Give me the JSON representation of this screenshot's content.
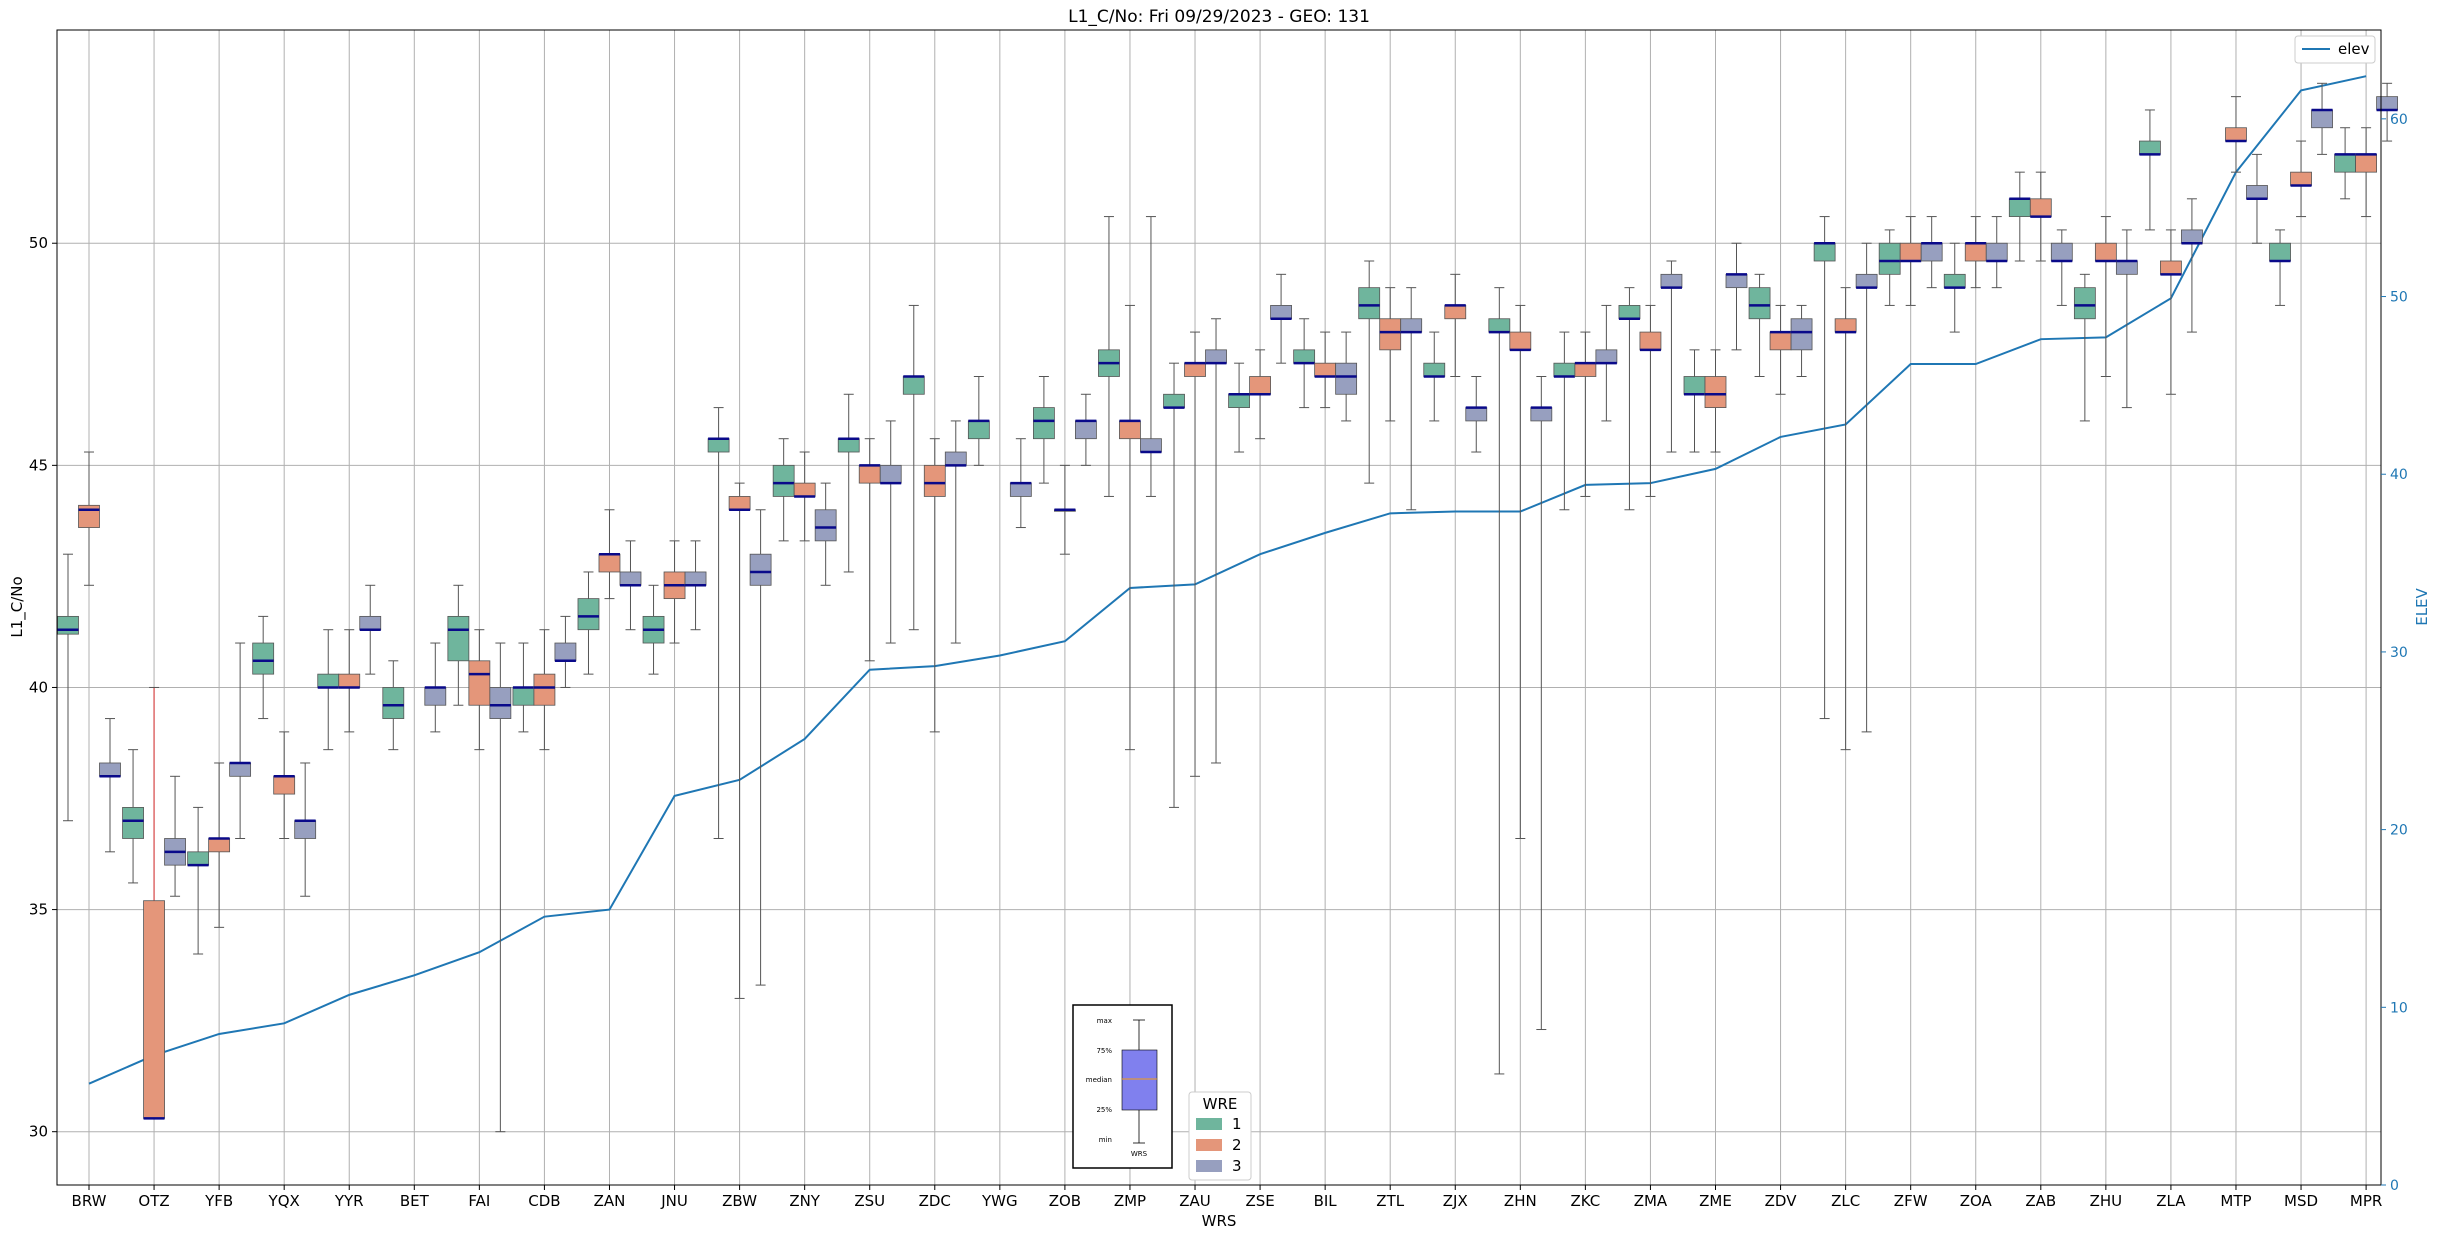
{
  "chart_data": {
    "type": "box",
    "title": "L1_C/No: Fri 09/29/2023 - GEO: 131",
    "xlabel": "WRS",
    "ylabel": "L1_C/No",
    "ylabel_right": "ELEV",
    "ylim": [
      28.8,
      54.8
    ],
    "ylim_right": [
      0,
      65
    ],
    "yticks": [
      30,
      35,
      40,
      45,
      50
    ],
    "yticks_right": [
      0,
      10,
      20,
      30,
      40,
      50,
      60
    ],
    "grid": true,
    "categories": [
      "BRW",
      "OTZ",
      "YFB",
      "YQX",
      "YYR",
      "BET",
      "FAI",
      "CDB",
      "ZAN",
      "JNU",
      "ZBW",
      "ZNY",
      "ZSU",
      "ZDC",
      "YWG",
      "ZOB",
      "ZMP",
      "ZAU",
      "ZSE",
      "BIL",
      "ZTL",
      "ZJX",
      "ZHN",
      "ZKC",
      "ZMA",
      "ZME",
      "ZDV",
      "ZLC",
      "ZFW",
      "ZOA",
      "ZAB",
      "ZHU",
      "ZLA",
      "MTP",
      "MSD",
      "MPR"
    ],
    "box_legend_title": "WRE",
    "box_series": [
      {
        "name": "1",
        "color": "#6fb59d"
      },
      {
        "name": "2",
        "color": "#e4967a"
      },
      {
        "name": "3",
        "color": "#979fbf"
      }
    ],
    "line_series": {
      "name": "elev",
      "color": "#1f77b4",
      "values": [
        5.7,
        7.3,
        8.5,
        9.1,
        10.7,
        11.8,
        13.1,
        15.1,
        15.5,
        21.9,
        22.8,
        25.1,
        29.0,
        29.2,
        29.8,
        30.6,
        33.6,
        33.8,
        35.5,
        36.7,
        37.8,
        37.9,
        37.9,
        39.4,
        39.5,
        40.3,
        42.1,
        42.8,
        46.2,
        46.2,
        47.6,
        47.7,
        49.9,
        57.0,
        61.6,
        62.4
      ]
    },
    "boxes": [
      {
        "cat": "BRW",
        "s": 1,
        "q1": 41.2,
        "med": 41.3,
        "q3": 41.6,
        "min": 37.0,
        "max": 43.0
      },
      {
        "cat": "BRW",
        "s": 2,
        "q1": 43.6,
        "med": 44.0,
        "q3": 44.1,
        "min": 42.3,
        "max": 45.3
      },
      {
        "cat": "BRW",
        "s": 3,
        "q1": 38.0,
        "med": 38.0,
        "q3": 38.3,
        "min": 36.3,
        "max": 39.3
      },
      {
        "cat": "OTZ",
        "s": 1,
        "q1": 36.6,
        "med": 37.0,
        "q3": 37.3,
        "min": 35.6,
        "max": 38.6
      },
      {
        "cat": "OTZ",
        "s": 2,
        "q1": 30.3,
        "med": 30.3,
        "q3": 35.2,
        "min": 30.3,
        "max": 40.0,
        "whisker_color": "#d62728"
      },
      {
        "cat": "OTZ",
        "s": 3,
        "q1": 36.0,
        "med": 36.3,
        "q3": 36.6,
        "min": 35.3,
        "max": 38.0
      },
      {
        "cat": "YFB",
        "s": 1,
        "q1": 36.0,
        "med": 36.0,
        "q3": 36.3,
        "min": 34.0,
        "max": 37.3
      },
      {
        "cat": "YFB",
        "s": 2,
        "q1": 36.3,
        "med": 36.6,
        "q3": 36.6,
        "min": 34.6,
        "max": 38.3
      },
      {
        "cat": "YFB",
        "s": 3,
        "q1": 38.0,
        "med": 38.3,
        "q3": 38.3,
        "min": 36.6,
        "max": 41.0
      },
      {
        "cat": "YQX",
        "s": 1,
        "q1": 40.3,
        "med": 40.6,
        "q3": 41.0,
        "min": 39.3,
        "max": 41.6
      },
      {
        "cat": "YQX",
        "s": 2,
        "q1": 37.6,
        "med": 38.0,
        "q3": 38.0,
        "min": 36.6,
        "max": 39.0
      },
      {
        "cat": "YQX",
        "s": 3,
        "q1": 36.6,
        "med": 37.0,
        "q3": 37.0,
        "min": 35.3,
        "max": 38.3
      },
      {
        "cat": "YYR",
        "s": 1,
        "q1": 40.0,
        "med": 40.0,
        "q3": 40.3,
        "min": 38.6,
        "max": 41.3
      },
      {
        "cat": "YYR",
        "s": 2,
        "q1": 40.0,
        "med": 40.0,
        "q3": 40.3,
        "min": 39.0,
        "max": 41.3
      },
      {
        "cat": "YYR",
        "s": 3,
        "q1": 41.3,
        "med": 41.3,
        "q3": 41.6,
        "min": 40.3,
        "max": 42.3
      },
      {
        "cat": "BET",
        "s": 1,
        "q1": 39.3,
        "med": 39.6,
        "q3": 40.0,
        "min": 38.6,
        "max": 40.6
      },
      {
        "cat": "BET",
        "s": 3,
        "q1": 39.6,
        "med": 40.0,
        "q3": 40.0,
        "min": 39.0,
        "max": 41.0
      },
      {
        "cat": "FAI",
        "s": 1,
        "q1": 40.6,
        "med": 41.3,
        "q3": 41.6,
        "min": 39.6,
        "max": 42.3
      },
      {
        "cat": "FAI",
        "s": 2,
        "q1": 39.6,
        "med": 40.3,
        "q3": 40.6,
        "min": 38.6,
        "max": 41.3
      },
      {
        "cat": "FAI",
        "s": 3,
        "q1": 39.3,
        "med": 39.6,
        "q3": 40.0,
        "min": 30.0,
        "max": 41.0
      },
      {
        "cat": "CDB",
        "s": 1,
        "q1": 39.6,
        "med": 40.0,
        "q3": 40.0,
        "min": 39.0,
        "max": 41.0
      },
      {
        "cat": "CDB",
        "s": 2,
        "q1": 39.6,
        "med": 40.0,
        "q3": 40.3,
        "min": 38.6,
        "max": 41.3
      },
      {
        "cat": "CDB",
        "s": 3,
        "q1": 40.6,
        "med": 40.6,
        "q3": 41.0,
        "min": 40.0,
        "max": 41.6
      },
      {
        "cat": "ZAN",
        "s": 1,
        "q1": 41.3,
        "med": 41.6,
        "q3": 42.0,
        "min": 40.3,
        "max": 42.6
      },
      {
        "cat": "ZAN",
        "s": 2,
        "q1": 42.6,
        "med": 43.0,
        "q3": 43.0,
        "min": 42.0,
        "max": 44.0
      },
      {
        "cat": "ZAN",
        "s": 3,
        "q1": 42.3,
        "med": 42.3,
        "q3": 42.6,
        "min": 41.3,
        "max": 43.3
      },
      {
        "cat": "JNU",
        "s": 1,
        "q1": 41.0,
        "med": 41.3,
        "q3": 41.6,
        "min": 40.3,
        "max": 42.3
      },
      {
        "cat": "JNU",
        "s": 2,
        "q1": 42.0,
        "med": 42.3,
        "q3": 42.6,
        "min": 41.0,
        "max": 43.3
      },
      {
        "cat": "JNU",
        "s": 3,
        "q1": 42.3,
        "med": 42.3,
        "q3": 42.6,
        "min": 41.3,
        "max": 43.3
      },
      {
        "cat": "ZBW",
        "s": 1,
        "q1": 45.3,
        "med": 45.6,
        "q3": 45.6,
        "min": 36.6,
        "max": 46.3
      },
      {
        "cat": "ZBW",
        "s": 2,
        "q1": 44.0,
        "med": 44.0,
        "q3": 44.3,
        "min": 33.0,
        "max": 44.6
      },
      {
        "cat": "ZBW",
        "s": 3,
        "q1": 42.3,
        "med": 42.6,
        "q3": 43.0,
        "min": 33.3,
        "max": 44.0
      },
      {
        "cat": "ZNY",
        "s": 1,
        "q1": 44.3,
        "med": 44.6,
        "q3": 45.0,
        "min": 43.3,
        "max": 45.6
      },
      {
        "cat": "ZNY",
        "s": 2,
        "q1": 44.3,
        "med": 44.3,
        "q3": 44.6,
        "min": 43.3,
        "max": 45.3
      },
      {
        "cat": "ZNY",
        "s": 3,
        "q1": 43.3,
        "med": 43.6,
        "q3": 44.0,
        "min": 42.3,
        "max": 44.6
      },
      {
        "cat": "ZSU",
        "s": 1,
        "q1": 45.3,
        "med": 45.6,
        "q3": 45.6,
        "min": 42.6,
        "max": 46.6
      },
      {
        "cat": "ZSU",
        "s": 2,
        "q1": 44.6,
        "med": 45.0,
        "q3": 45.0,
        "min": 40.6,
        "max": 45.6
      },
      {
        "cat": "ZSU",
        "s": 3,
        "q1": 44.6,
        "med": 44.6,
        "q3": 45.0,
        "min": 41.0,
        "max": 46.0
      },
      {
        "cat": "ZDC",
        "s": 1,
        "q1": 46.6,
        "med": 47.0,
        "q3": 47.0,
        "min": 41.3,
        "max": 48.6
      },
      {
        "cat": "ZDC",
        "s": 2,
        "q1": 44.3,
        "med": 44.6,
        "q3": 45.0,
        "min": 39.0,
        "max": 45.6
      },
      {
        "cat": "ZDC",
        "s": 3,
        "q1": 45.0,
        "med": 45.0,
        "q3": 45.3,
        "min": 41.0,
        "max": 46.0
      },
      {
        "cat": "YWG",
        "s": 1,
        "q1": 45.6,
        "med": 46.0,
        "q3": 46.0,
        "min": 45.0,
        "max": 47.0
      },
      {
        "cat": "YWG",
        "s": 3,
        "q1": 44.3,
        "med": 44.6,
        "q3": 44.6,
        "min": 43.6,
        "max": 45.6
      },
      {
        "cat": "ZOB",
        "s": 1,
        "q1": 45.6,
        "med": 46.0,
        "q3": 46.3,
        "min": 44.6,
        "max": 47.0
      },
      {
        "cat": "ZOB",
        "s": 2,
        "q1": 44.0,
        "med": 44.0,
        "q3": 44.0,
        "min": 43.0,
        "max": 45.0
      },
      {
        "cat": "ZOB",
        "s": 3,
        "q1": 45.6,
        "med": 46.0,
        "q3": 46.0,
        "min": 45.0,
        "max": 46.6
      },
      {
        "cat": "ZMP",
        "s": 1,
        "q1": 47.0,
        "med": 47.3,
        "q3": 47.6,
        "min": 44.3,
        "max": 50.6
      },
      {
        "cat": "ZMP",
        "s": 2,
        "q1": 45.6,
        "med": 46.0,
        "q3": 46.0,
        "min": 38.6,
        "max": 48.6
      },
      {
        "cat": "ZMP",
        "s": 3,
        "q1": 45.3,
        "med": 45.3,
        "q3": 45.6,
        "min": 44.3,
        "max": 50.6
      },
      {
        "cat": "ZAU",
        "s": 1,
        "q1": 46.3,
        "med": 46.3,
        "q3": 46.6,
        "min": 37.3,
        "max": 47.3
      },
      {
        "cat": "ZAU",
        "s": 2,
        "q1": 47.0,
        "med": 47.3,
        "q3": 47.3,
        "min": 38.0,
        "max": 48.0
      },
      {
        "cat": "ZAU",
        "s": 3,
        "q1": 47.3,
        "med": 47.3,
        "q3": 47.6,
        "min": 38.3,
        "max": 48.3
      },
      {
        "cat": "ZSE",
        "s": 1,
        "q1": 46.3,
        "med": 46.6,
        "q3": 46.6,
        "min": 45.3,
        "max": 47.3
      },
      {
        "cat": "ZSE",
        "s": 2,
        "q1": 46.6,
        "med": 46.6,
        "q3": 47.0,
        "min": 45.6,
        "max": 47.6
      },
      {
        "cat": "ZSE",
        "s": 3,
        "q1": 48.3,
        "med": 48.3,
        "q3": 48.6,
        "min": 47.3,
        "max": 49.3
      },
      {
        "cat": "BIL",
        "s": 1,
        "q1": 47.3,
        "med": 47.3,
        "q3": 47.6,
        "min": 46.3,
        "max": 48.3
      },
      {
        "cat": "BIL",
        "s": 2,
        "q1": 47.0,
        "med": 47.0,
        "q3": 47.3,
        "min": 46.3,
        "max": 48.0
      },
      {
        "cat": "BIL",
        "s": 3,
        "q1": 46.6,
        "med": 47.0,
        "q3": 47.3,
        "min": 46.0,
        "max": 48.0
      },
      {
        "cat": "ZTL",
        "s": 1,
        "q1": 48.3,
        "med": 48.6,
        "q3": 49.0,
        "min": 44.6,
        "max": 49.6
      },
      {
        "cat": "ZTL",
        "s": 2,
        "q1": 47.6,
        "med": 48.0,
        "q3": 48.3,
        "min": 46.0,
        "max": 49.0
      },
      {
        "cat": "ZTL",
        "s": 3,
        "q1": 48.0,
        "med": 48.0,
        "q3": 48.3,
        "min": 44.0,
        "max": 49.0
      },
      {
        "cat": "ZJX",
        "s": 1,
        "q1": 47.0,
        "med": 47.0,
        "q3": 47.3,
        "min": 46.0,
        "max": 48.0
      },
      {
        "cat": "ZJX",
        "s": 2,
        "q1": 48.3,
        "med": 48.6,
        "q3": 48.6,
        "min": 47.0,
        "max": 49.3
      },
      {
        "cat": "ZJX",
        "s": 3,
        "q1": 46.0,
        "med": 46.3,
        "q3": 46.3,
        "min": 45.3,
        "max": 47.0
      },
      {
        "cat": "ZHN",
        "s": 1,
        "q1": 48.0,
        "med": 48.0,
        "q3": 48.3,
        "min": 31.3,
        "max": 49.0
      },
      {
        "cat": "ZHN",
        "s": 2,
        "q1": 47.6,
        "med": 47.6,
        "q3": 48.0,
        "min": 36.6,
        "max": 48.6
      },
      {
        "cat": "ZHN",
        "s": 3,
        "q1": 46.0,
        "med": 46.3,
        "q3": 46.3,
        "min": 32.3,
        "max": 47.0
      },
      {
        "cat": "ZKC",
        "s": 1,
        "q1": 47.0,
        "med": 47.0,
        "q3": 47.3,
        "min": 44.0,
        "max": 48.0
      },
      {
        "cat": "ZKC",
        "s": 2,
        "q1": 47.0,
        "med": 47.3,
        "q3": 47.3,
        "min": 44.3,
        "max": 48.0
      },
      {
        "cat": "ZKC",
        "s": 3,
        "q1": 47.3,
        "med": 47.3,
        "q3": 47.6,
        "min": 46.0,
        "max": 48.6
      },
      {
        "cat": "ZMA",
        "s": 1,
        "q1": 48.3,
        "med": 48.3,
        "q3": 48.6,
        "min": 44.0,
        "max": 49.0
      },
      {
        "cat": "ZMA",
        "s": 2,
        "q1": 47.6,
        "med": 47.6,
        "q3": 48.0,
        "min": 44.3,
        "max": 48.6
      },
      {
        "cat": "ZMA",
        "s": 3,
        "q1": 49.0,
        "med": 49.0,
        "q3": 49.3,
        "min": 45.3,
        "max": 49.6
      },
      {
        "cat": "ZME",
        "s": 1,
        "q1": 46.6,
        "med": 46.6,
        "q3": 47.0,
        "min": 45.3,
        "max": 47.6
      },
      {
        "cat": "ZME",
        "s": 2,
        "q1": 46.3,
        "med": 46.6,
        "q3": 47.0,
        "min": 45.3,
        "max": 47.6
      },
      {
        "cat": "ZME",
        "s": 3,
        "q1": 49.0,
        "med": 49.3,
        "q3": 49.3,
        "min": 47.6,
        "max": 50.0
      },
      {
        "cat": "ZDV",
        "s": 1,
        "q1": 48.3,
        "med": 48.6,
        "q3": 49.0,
        "min": 47.0,
        "max": 49.3
      },
      {
        "cat": "ZDV",
        "s": 2,
        "q1": 47.6,
        "med": 48.0,
        "q3": 48.0,
        "min": 46.6,
        "max": 48.6
      },
      {
        "cat": "ZDV",
        "s": 3,
        "q1": 47.6,
        "med": 48.0,
        "q3": 48.3,
        "min": 47.0,
        "max": 48.6
      },
      {
        "cat": "ZLC",
        "s": 1,
        "q1": 49.6,
        "med": 50.0,
        "q3": 50.0,
        "min": 39.3,
        "max": 50.6
      },
      {
        "cat": "ZLC",
        "s": 2,
        "q1": 48.0,
        "med": 48.0,
        "q3": 48.3,
        "min": 38.6,
        "max": 49.0
      },
      {
        "cat": "ZLC",
        "s": 3,
        "q1": 49.0,
        "med": 49.0,
        "q3": 49.3,
        "min": 39.0,
        "max": 50.0
      },
      {
        "cat": "ZFW",
        "s": 1,
        "q1": 49.3,
        "med": 49.6,
        "q3": 50.0,
        "min": 48.6,
        "max": 50.3
      },
      {
        "cat": "ZFW",
        "s": 2,
        "q1": 49.6,
        "med": 49.6,
        "q3": 50.0,
        "min": 48.6,
        "max": 50.6
      },
      {
        "cat": "ZFW",
        "s": 3,
        "q1": 49.6,
        "med": 50.0,
        "q3": 50.0,
        "min": 49.0,
        "max": 50.6
      },
      {
        "cat": "ZOA",
        "s": 1,
        "q1": 49.0,
        "med": 49.0,
        "q3": 49.3,
        "min": 48.0,
        "max": 50.0
      },
      {
        "cat": "ZOA",
        "s": 2,
        "q1": 49.6,
        "med": 50.0,
        "q3": 50.0,
        "min": 49.0,
        "max": 50.6
      },
      {
        "cat": "ZOA",
        "s": 3,
        "q1": 49.6,
        "med": 49.6,
        "q3": 50.0,
        "min": 49.0,
        "max": 50.6
      },
      {
        "cat": "ZAB",
        "s": 1,
        "q1": 50.6,
        "med": 51.0,
        "q3": 51.0,
        "min": 49.6,
        "max": 51.6
      },
      {
        "cat": "ZAB",
        "s": 2,
        "q1": 50.6,
        "med": 50.6,
        "q3": 51.0,
        "min": 49.6,
        "max": 51.6
      },
      {
        "cat": "ZAB",
        "s": 3,
        "q1": 49.6,
        "med": 49.6,
        "q3": 50.0,
        "min": 48.6,
        "max": 50.3
      },
      {
        "cat": "ZHU",
        "s": 1,
        "q1": 48.3,
        "med": 48.6,
        "q3": 49.0,
        "min": 46.0,
        "max": 49.3
      },
      {
        "cat": "ZHU",
        "s": 2,
        "q1": 49.6,
        "med": 49.6,
        "q3": 50.0,
        "min": 47.0,
        "max": 50.6
      },
      {
        "cat": "ZHU",
        "s": 3,
        "q1": 49.3,
        "med": 49.6,
        "q3": 49.6,
        "min": 46.3,
        "max": 50.3
      },
      {
        "cat": "ZLA",
        "s": 1,
        "q1": 52.0,
        "med": 52.0,
        "q3": 52.3,
        "min": 50.3,
        "max": 53.0
      },
      {
        "cat": "ZLA",
        "s": 2,
        "q1": 49.3,
        "med": 49.3,
        "q3": 49.6,
        "min": 46.6,
        "max": 50.3
      },
      {
        "cat": "ZLA",
        "s": 3,
        "q1": 50.0,
        "med": 50.0,
        "q3": 50.3,
        "min": 48.0,
        "max": 51.0
      },
      {
        "cat": "MTP",
        "s": 2,
        "q1": 52.3,
        "med": 52.3,
        "q3": 52.6,
        "min": 51.6,
        "max": 53.3
      },
      {
        "cat": "MTP",
        "s": 3,
        "q1": 51.0,
        "med": 51.0,
        "q3": 51.3,
        "min": 50.0,
        "max": 52.0
      },
      {
        "cat": "MSD",
        "s": 1,
        "q1": 49.6,
        "med": 49.6,
        "q3": 50.0,
        "min": 48.6,
        "max": 50.3
      },
      {
        "cat": "MSD",
        "s": 2,
        "q1": 51.3,
        "med": 51.3,
        "q3": 51.6,
        "min": 50.6,
        "max": 52.3
      },
      {
        "cat": "MSD",
        "s": 3,
        "q1": 52.6,
        "med": 53.0,
        "q3": 53.0,
        "min": 52.0,
        "max": 53.6
      },
      {
        "cat": "MPR",
        "s": 1,
        "q1": 51.6,
        "med": 52.0,
        "q3": 52.0,
        "min": 51.0,
        "max": 52.6
      },
      {
        "cat": "MPR",
        "s": 2,
        "q1": 51.6,
        "med": 52.0,
        "q3": 52.0,
        "min": 50.6,
        "max": 52.6
      },
      {
        "cat": "MPR",
        "s": 3,
        "q1": 53.0,
        "med": 53.0,
        "q3": 53.3,
        "min": 52.3,
        "max": 53.6
      }
    ],
    "inset_labels": [
      "max",
      "75%",
      "median",
      "25%",
      "min",
      "WRS"
    ]
  }
}
